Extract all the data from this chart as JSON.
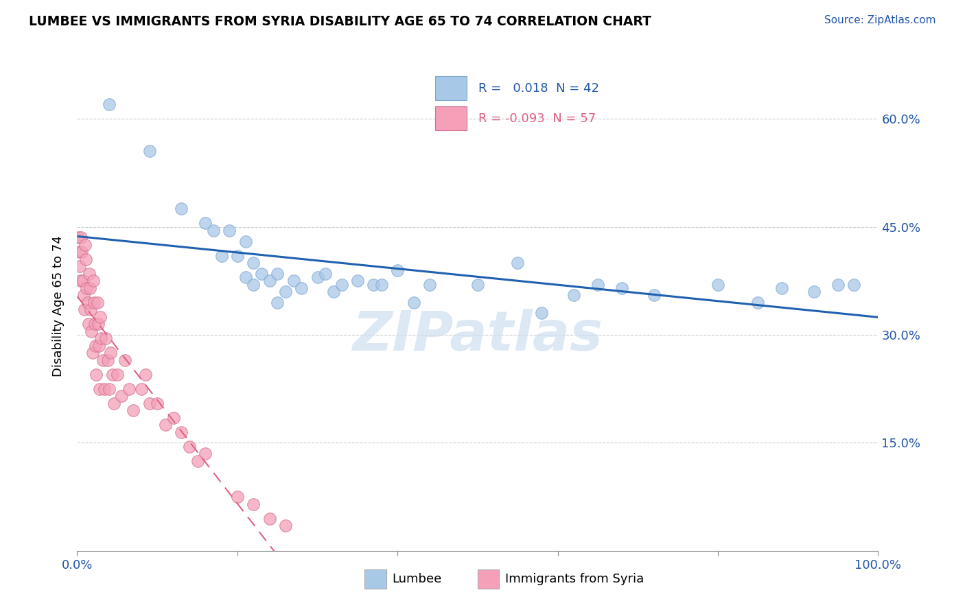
{
  "title": "LUMBEE VS IMMIGRANTS FROM SYRIA DISABILITY AGE 65 TO 74 CORRELATION CHART",
  "source_text": "Source: ZipAtlas.com",
  "ylabel": "Disability Age 65 to 74",
  "xlim": [
    0,
    1.0
  ],
  "ylim": [
    0,
    0.68
  ],
  "xtick_pos": [
    0.0,
    0.2,
    0.4,
    0.6,
    0.8,
    1.0
  ],
  "ytick_pos": [
    0.15,
    0.3,
    0.45,
    0.6
  ],
  "yticklabels": [
    "15.0%",
    "30.0%",
    "45.0%",
    "60.0%"
  ],
  "legend_r_blue": " 0.018",
  "legend_n_blue": "42",
  "legend_r_pink": "-0.093",
  "legend_n_pink": "57",
  "blue_color": "#a8c8e8",
  "pink_color": "#f4a0b8",
  "trend_blue_color": "#2060b0",
  "trend_pink_color": "#e06080",
  "watermark": "ZIPatlas",
  "blue_x": [
    0.04,
    0.09,
    0.13,
    0.16,
    0.17,
    0.18,
    0.19,
    0.2,
    0.21,
    0.21,
    0.22,
    0.22,
    0.23,
    0.24,
    0.25,
    0.26,
    0.27,
    0.28,
    0.3,
    0.31,
    0.32,
    0.33,
    0.35,
    0.37,
    0.4,
    0.42,
    0.44,
    0.5,
    0.55,
    0.58,
    0.62,
    0.65,
    0.68,
    0.72,
    0.8,
    0.85,
    0.88,
    0.92,
    0.95,
    0.97,
    0.25,
    0.38
  ],
  "blue_y": [
    0.62,
    0.555,
    0.475,
    0.455,
    0.445,
    0.41,
    0.445,
    0.41,
    0.43,
    0.38,
    0.4,
    0.37,
    0.385,
    0.375,
    0.385,
    0.36,
    0.375,
    0.365,
    0.38,
    0.385,
    0.36,
    0.37,
    0.375,
    0.37,
    0.39,
    0.345,
    0.37,
    0.37,
    0.4,
    0.33,
    0.355,
    0.37,
    0.365,
    0.355,
    0.37,
    0.345,
    0.365,
    0.36,
    0.37,
    0.37,
    0.345,
    0.37
  ],
  "pink_x": [
    0.001,
    0.002,
    0.003,
    0.004,
    0.005,
    0.006,
    0.007,
    0.008,
    0.009,
    0.01,
    0.011,
    0.012,
    0.013,
    0.014,
    0.015,
    0.016,
    0.017,
    0.018,
    0.019,
    0.02,
    0.021,
    0.022,
    0.023,
    0.024,
    0.025,
    0.026,
    0.027,
    0.028,
    0.029,
    0.03,
    0.032,
    0.034,
    0.036,
    0.038,
    0.04,
    0.042,
    0.044,
    0.046,
    0.05,
    0.055,
    0.06,
    0.065,
    0.07,
    0.08,
    0.085,
    0.09,
    0.1,
    0.11,
    0.12,
    0.13,
    0.14,
    0.15,
    0.16,
    0.2,
    0.22,
    0.24,
    0.26
  ],
  "pink_y": [
    0.435,
    0.415,
    0.395,
    0.375,
    0.435,
    0.415,
    0.375,
    0.355,
    0.335,
    0.425,
    0.405,
    0.365,
    0.345,
    0.315,
    0.385,
    0.365,
    0.335,
    0.305,
    0.275,
    0.375,
    0.345,
    0.315,
    0.285,
    0.245,
    0.345,
    0.315,
    0.285,
    0.225,
    0.325,
    0.295,
    0.265,
    0.225,
    0.295,
    0.265,
    0.225,
    0.275,
    0.245,
    0.205,
    0.245,
    0.215,
    0.265,
    0.225,
    0.195,
    0.225,
    0.245,
    0.205,
    0.205,
    0.175,
    0.185,
    0.165,
    0.145,
    0.125,
    0.135,
    0.075,
    0.065,
    0.045,
    0.035
  ]
}
